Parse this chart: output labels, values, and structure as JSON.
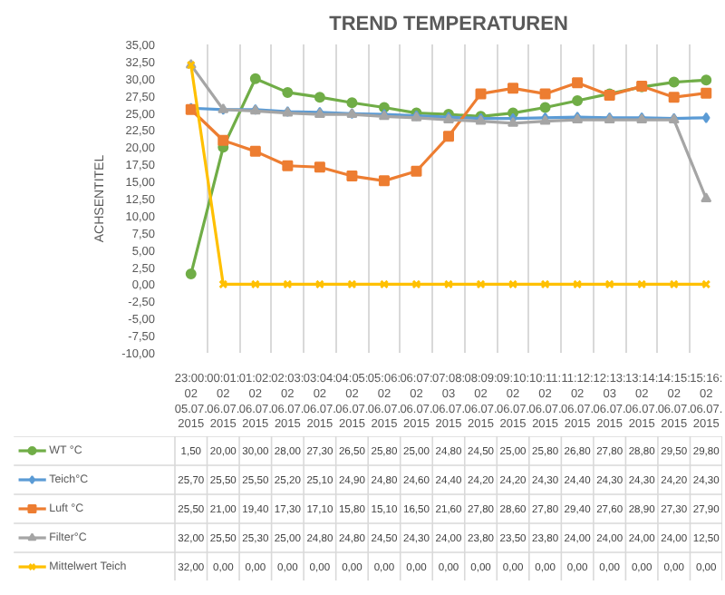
{
  "chart_data": {
    "type": "line",
    "title": "TREND TEMPERATUREN",
    "ylabel": "ACHSENTITEL",
    "categories": [
      "23:00:02 05.07.2015",
      "00:01:02 06.07.2015",
      "01:02:02 06.07.2015",
      "02:03:02 06.07.2015",
      "03:04:02 06.07.2015",
      "04:05:02 06.07.2015",
      "05:06:02 06.07.2015",
      "06:07:02 06.07.2015",
      "07:08:03 06.07.2015",
      "08:09:02 06.07.2015",
      "09:10:02 06.07.2015",
      "10:11:02 06.07.2015",
      "11:12:02 06.07.2015",
      "12:13:03 06.07.2015",
      "13:14:02 06.07.2015",
      "14:15:02 06.07.2015",
      "15:16:02 06.07.2015"
    ],
    "series": [
      {
        "name": "WT °C",
        "color": "#70ad47",
        "marker": "circle",
        "values": [
          1.5,
          20,
          30,
          28,
          27.3,
          26.5,
          25.8,
          25,
          24.8,
          24.5,
          25,
          25.8,
          26.8,
          27.8,
          28.8,
          29.5,
          29.8
        ],
        "value_labels": [
          "1,50",
          "20,00",
          "30,00",
          "28,00",
          "27,30",
          "26,50",
          "25,80",
          "25,00",
          "24,80",
          "24,50",
          "25,00",
          "25,80",
          "26,80",
          "27,80",
          "28,80",
          "29,50",
          "29,80"
        ]
      },
      {
        "name": "Teich°C",
        "color": "#5b9bd5",
        "marker": "diamond",
        "values": [
          25.7,
          25.5,
          25.5,
          25.2,
          25.1,
          24.9,
          24.8,
          24.6,
          24.4,
          24.2,
          24.2,
          24.3,
          24.4,
          24.3,
          24.3,
          24.2,
          24.3
        ],
        "value_labels": [
          "25,70",
          "25,50",
          "25,50",
          "25,20",
          "25,10",
          "24,90",
          "24,80",
          "24,60",
          "24,40",
          "24,20",
          "24,20",
          "24,30",
          "24,40",
          "24,30",
          "24,30",
          "24,20",
          "24,30"
        ]
      },
      {
        "name": "Luft °C",
        "color": "#ed7d31",
        "marker": "square",
        "values": [
          25.5,
          21,
          19.4,
          17.3,
          17.1,
          15.8,
          15.1,
          16.5,
          21.6,
          27.8,
          28.6,
          27.8,
          29.4,
          27.6,
          28.9,
          27.3,
          27.9
        ],
        "value_labels": [
          "25,50",
          "21,00",
          "19,40",
          "17,30",
          "17,10",
          "15,80",
          "15,10",
          "16,50",
          "21,60",
          "27,80",
          "28,60",
          "27,80",
          "29,40",
          "27,60",
          "28,90",
          "27,30",
          "27,90"
        ]
      },
      {
        "name": "Filter°C",
        "color": "#a5a5a5",
        "marker": "triangle",
        "values": [
          32,
          25.5,
          25.3,
          25,
          24.8,
          24.8,
          24.5,
          24.3,
          24,
          23.8,
          23.5,
          23.8,
          24,
          24,
          24,
          24,
          12.5
        ],
        "value_labels": [
          "32,00",
          "25,50",
          "25,30",
          "25,00",
          "24,80",
          "24,80",
          "24,50",
          "24,30",
          "24,00",
          "23,80",
          "23,50",
          "23,80",
          "24,00",
          "24,00",
          "24,00",
          "24,00",
          "12,50"
        ]
      },
      {
        "name": "Mittelwert Teich",
        "color": "#ffc000",
        "marker": "cross",
        "values": [
          32,
          0,
          0,
          0,
          0,
          0,
          0,
          0,
          0,
          0,
          0,
          0,
          0,
          0,
          0,
          0,
          0
        ],
        "value_labels": [
          "32,00",
          "0,00",
          "0,00",
          "0,00",
          "0,00",
          "0,00",
          "0,00",
          "0,00",
          "0,00",
          "0,00",
          "0,00",
          "0,00",
          "0,00",
          "0,00",
          "0,00",
          "0,00",
          "0,00"
        ]
      }
    ],
    "ylim": [
      -10,
      35
    ],
    "yticks": [
      {
        "value": -10,
        "label": "-10,00"
      },
      {
        "value": -7.5,
        "label": "-7,50"
      },
      {
        "value": -5,
        "label": "-5,00"
      },
      {
        "value": -2.5,
        "label": "-2,50"
      },
      {
        "value": 0,
        "label": "0,00"
      },
      {
        "value": 2.5,
        "label": "2,50"
      },
      {
        "value": 5,
        "label": "5,00"
      },
      {
        "value": 7.5,
        "label": "7,50"
      },
      {
        "value": 10,
        "label": "10,00"
      },
      {
        "value": 12.5,
        "label": "12,50"
      },
      {
        "value": 15,
        "label": "15,00"
      },
      {
        "value": 17.5,
        "label": "17,50"
      },
      {
        "value": 20,
        "label": "20,00"
      },
      {
        "value": 22.5,
        "label": "22,50"
      },
      {
        "value": 25,
        "label": "25,00"
      },
      {
        "value": 27.5,
        "label": "27,50"
      },
      {
        "value": 30,
        "label": "30,00"
      },
      {
        "value": 32.5,
        "label": "32,50"
      },
      {
        "value": 35,
        "label": "35,00"
      }
    ],
    "grid": "x",
    "legend": "bottom",
    "line_style": "solid"
  }
}
